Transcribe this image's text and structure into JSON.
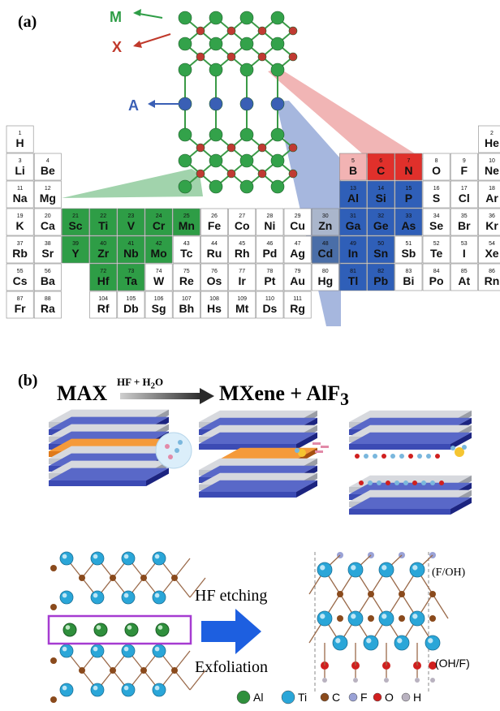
{
  "panel_a": {
    "label": "(a)",
    "layer_labels": {
      "m": "M",
      "x": "X",
      "a": "A"
    },
    "colors": {
      "m": "#2e9d46",
      "x": "#c0392b",
      "a": "#3a5fb5"
    },
    "rows": [
      [
        [
          "H",
          1
        ],
        null,
        null,
        null,
        null,
        null,
        null,
        null,
        null,
        null,
        null,
        null,
        null,
        null,
        null,
        null,
        null,
        [
          "He",
          2
        ]
      ],
      [
        [
          "Li",
          3
        ],
        [
          "Be",
          4
        ],
        null,
        null,
        null,
        null,
        null,
        null,
        null,
        null,
        null,
        null,
        [
          "B",
          5
        ],
        [
          "C",
          6
        ],
        [
          "N",
          7
        ],
        [
          "O",
          8
        ],
        [
          "F",
          9
        ],
        [
          "Ne",
          10
        ]
      ],
      [
        [
          "Na",
          11
        ],
        [
          "Mg",
          12
        ],
        null,
        null,
        null,
        null,
        null,
        null,
        null,
        null,
        null,
        null,
        [
          "Al",
          13
        ],
        [
          "Si",
          14
        ],
        [
          "P",
          15
        ],
        [
          "S",
          16
        ],
        [
          "Cl",
          17
        ],
        [
          "Ar",
          18
        ]
      ],
      [
        [
          "K",
          19
        ],
        [
          "Ca",
          20
        ],
        [
          "Sc",
          21
        ],
        [
          "Ti",
          22
        ],
        [
          "V",
          23
        ],
        [
          "Cr",
          24
        ],
        [
          "Mn",
          25
        ],
        [
          "Fe",
          26
        ],
        [
          "Co",
          27
        ],
        [
          "Ni",
          28
        ],
        [
          "Cu",
          29
        ],
        [
          "Zn",
          30
        ],
        [
          "Ga",
          31
        ],
        [
          "Ge",
          32
        ],
        [
          "As",
          33
        ],
        [
          "Se",
          34
        ],
        [
          "Br",
          35
        ],
        [
          "Kr",
          36
        ]
      ],
      [
        [
          "Rb",
          37
        ],
        [
          "Sr",
          38
        ],
        [
          "Y",
          39
        ],
        [
          "Zr",
          40
        ],
        [
          "Nb",
          41
        ],
        [
          "Mo",
          42
        ],
        [
          "Tc",
          43
        ],
        [
          "Ru",
          44
        ],
        [
          "Rh",
          45
        ],
        [
          "Pd",
          46
        ],
        [
          "Ag",
          47
        ],
        [
          "Cd",
          48
        ],
        [
          "In",
          49
        ],
        [
          "Sn",
          50
        ],
        [
          "Sb",
          51
        ],
        [
          "Te",
          52
        ],
        [
          "I",
          53
        ],
        [
          "Xe",
          54
        ]
      ],
      [
        [
          "Cs",
          55
        ],
        [
          "Ba",
          56
        ],
        null,
        [
          "Hf",
          72
        ],
        [
          "Ta",
          73
        ],
        [
          "W",
          74
        ],
        [
          "Re",
          75
        ],
        [
          "Os",
          76
        ],
        [
          "Ir",
          77
        ],
        [
          "Pt",
          78
        ],
        [
          "Au",
          79
        ],
        [
          "Hg",
          80
        ],
        [
          "Tl",
          81
        ],
        [
          "Pb",
          82
        ],
        [
          "Bi",
          83
        ],
        [
          "Po",
          84
        ],
        [
          "At",
          85
        ],
        [
          "Rn",
          86
        ]
      ],
      [
        [
          "Fr",
          87
        ],
        [
          "Ra",
          88
        ],
        null,
        [
          "Rf",
          104
        ],
        [
          "Db",
          105
        ],
        [
          "Sg",
          106
        ],
        [
          "Bh",
          107
        ],
        [
          "Hs",
          108
        ],
        [
          "Mt",
          109
        ],
        [
          "Ds",
          110
        ],
        [
          "Rg",
          111
        ],
        null,
        null,
        null,
        null,
        null,
        null,
        null
      ]
    ],
    "m_elements": [
      "Sc",
      "Ti",
      "V",
      "Cr",
      "Mn",
      "Y",
      "Zr",
      "Nb",
      "Mo",
      "Hf",
      "Ta"
    ],
    "a_elements": [
      "Al",
      "Si",
      "P",
      "Ga",
      "Ge",
      "As",
      "Cd",
      "In",
      "Sn",
      "Tl",
      "Pb"
    ],
    "x_elements": [
      "C",
      "N"
    ],
    "x_highlight_light": [
      "B"
    ],
    "gray_highlight": [
      "Zn",
      "Cd"
    ]
  },
  "panel_b": {
    "label": "(b)",
    "scheme_left": "MAX",
    "arrow_label_html": "HF + H<sub>2</sub>O",
    "scheme_right_html": "MXene + AlF<sub>3</sub>",
    "hf_etching": "HF etching",
    "exfoliation": "Exfoliation",
    "surface_top": "(F/OH)",
    "surface_bottom": "(OH/F)",
    "legend": [
      {
        "name": "Al",
        "color": "#2f8f3c",
        "glyph": "3"
      },
      {
        "name": "Ti",
        "color": "#2aa6d8",
        "glyph": "Ti"
      },
      {
        "name": "C",
        "color": "#8a4a1c",
        "glyph": ""
      },
      {
        "name": "F",
        "color": "#9aa2d6",
        "glyph": ""
      },
      {
        "name": "O",
        "color": "#d0201f",
        "glyph": ""
      },
      {
        "name": "H",
        "color": "#b9b2c0",
        "glyph": ""
      }
    ]
  }
}
